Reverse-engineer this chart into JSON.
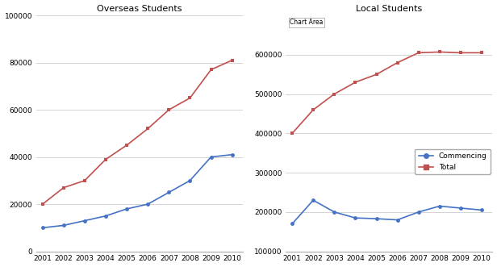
{
  "years": [
    2001,
    2002,
    2003,
    2004,
    2005,
    2006,
    2007,
    2008,
    2009,
    2010
  ],
  "overseas_commencing": [
    10000,
    11000,
    13000,
    15000,
    18000,
    20000,
    25000,
    30000,
    40000,
    41000
  ],
  "overseas_total": [
    20000,
    27000,
    30000,
    39000,
    45000,
    52000,
    60000,
    65000,
    77000,
    81000
  ],
  "local_commencing": [
    170000,
    230000,
    200000,
    185000,
    183000,
    180000,
    200000,
    215000,
    210000,
    205000
  ],
  "local_total": [
    400000,
    460000,
    500000,
    530000,
    550000,
    580000,
    605000,
    607000,
    605000,
    605000
  ],
  "overseas_title": "Overseas Students",
  "local_title": "Local Students",
  "chart_area_label": "Chart Area",
  "legend_commencing": "Commencing",
  "legend_total": "Total",
  "color_commencing": "#4472c4",
  "color_total": "#c0504d",
  "overseas_ylim": [
    0,
    100000
  ],
  "overseas_yticks": [
    0,
    20000,
    40000,
    60000,
    80000,
    100000
  ],
  "local_ylim": [
    100000,
    700000
  ],
  "local_yticks": [
    100000,
    200000,
    300000,
    400000,
    500000,
    600000
  ],
  "background_color": "#ffffff",
  "plot_bg_color": "#ffffff",
  "title_fontsize": 8,
  "tick_fontsize": 6.5,
  "marker_size": 3.5,
  "line_width": 1.2
}
